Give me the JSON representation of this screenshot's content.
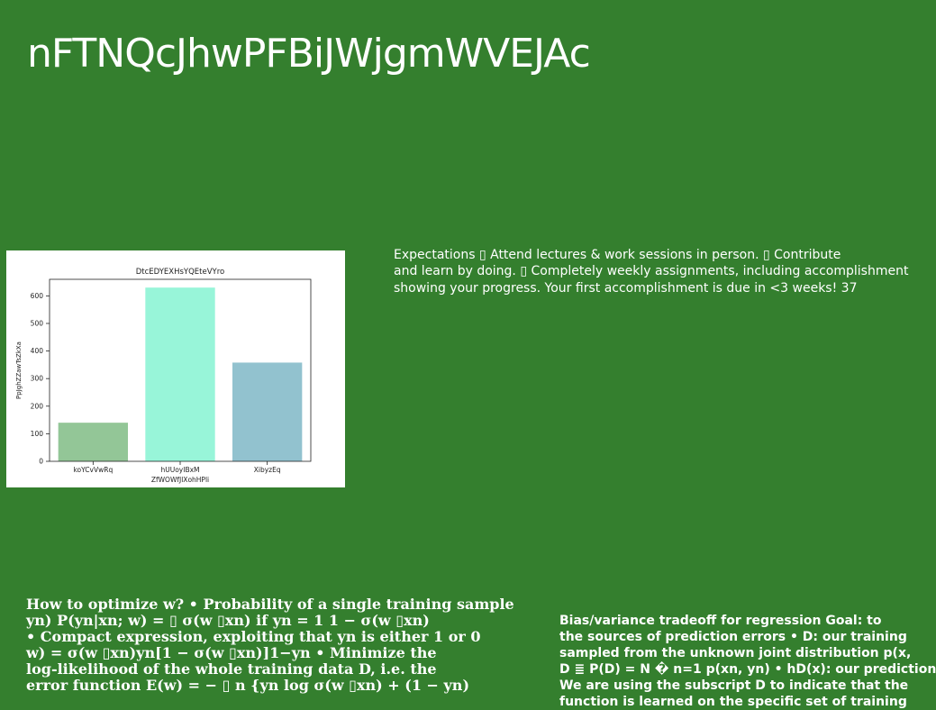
{
  "slide": {
    "title": "nFTNQcJhwPFBiJWjgmWVEJAc"
  },
  "expectations": {
    "lines": [
      "Expectations ▯ Attend lectures & work sessions in person. ▯ Contribute",
      "and learn by doing. ▯ Completely weekly assignments, including accomplishment",
      "showing your progress. Your first accomplishment is due in <3 weeks! 37"
    ]
  },
  "optimize": {
    "lines": [
      "How to optimize w? • Probability of a single training sample",
      "yn) P(yn|xn; w) = ▯ σ(w ▯xn) if yn = 1 1 − σ(w ▯xn)",
      "• Compact expression, exploiting that yn is either 1 or 0",
      "w) = σ(w ▯xn)yn[1 − σ(w ▯xn)]1−yn • Minimize the",
      "log-likelihood of the whole training data D, i.e. the",
      "error function E(w) = − ▯ n {yn log σ(w ▯xn) + (1 − yn)"
    ]
  },
  "bias": {
    "lines": [
      "Bias/variance tradeoff for regression Goal: to",
      "the sources of prediction errors • D: our training",
      "sampled from the unknown joint distribution p(x,",
      "D ≣ P(D) = N � n=1 p(xn, yn) • hD(x): our prediction",
      "We are using the subscript D to indicate that the",
      "function is learned on the specific set of training"
    ]
  },
  "chart_data": {
    "type": "bar",
    "title": "DtcEDYEXHsYQEteVYro",
    "xlabel": "ZfWOWfJlXohHPli",
    "ylabel": "PpJghZZawTsZkXa",
    "categories": [
      "koYCvVwRq",
      "hUUoyIBxM",
      "XibyzEq"
    ],
    "values": [
      140,
      630,
      358
    ],
    "colors": [
      "#93c697",
      "#98f5d9",
      "#92c2cf"
    ],
    "ylim": [
      0,
      660
    ],
    "yticks": [
      0,
      100,
      200,
      300,
      400,
      500,
      600
    ],
    "grid": false,
    "legend": "none"
  },
  "colors": {
    "background": "#347f2e",
    "text": "#ffffff"
  }
}
